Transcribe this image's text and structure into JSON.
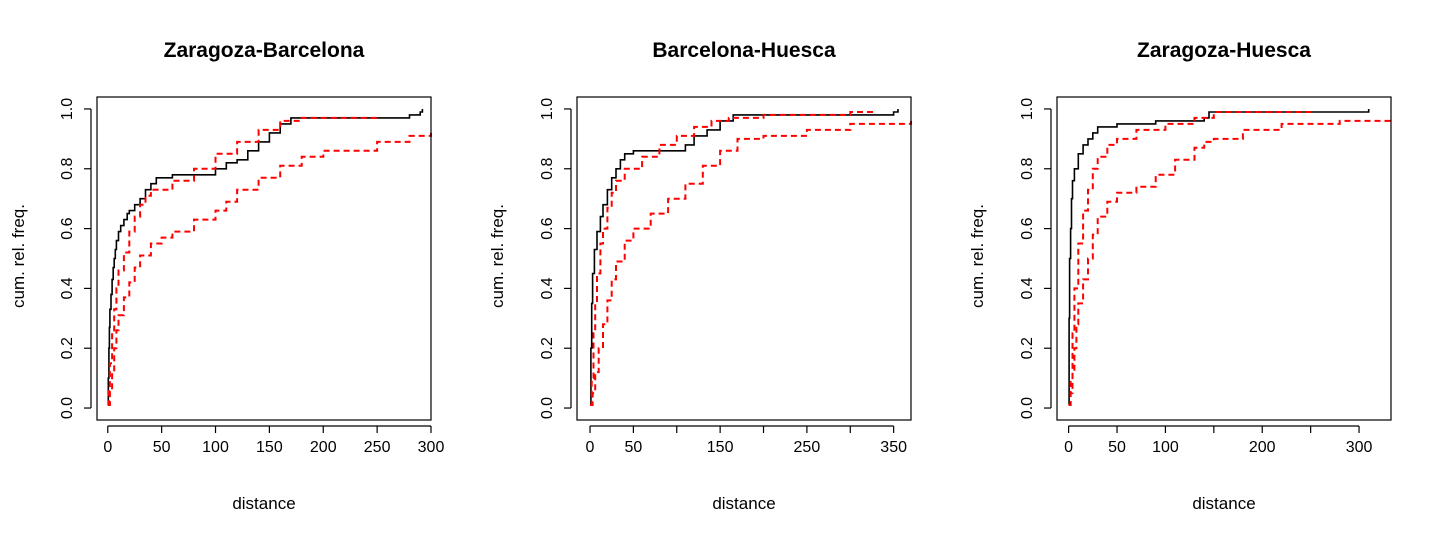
{
  "colors": {
    "observed": "#000000",
    "envelope": "#ff0000",
    "background": "#ffffff"
  },
  "chart_data": [
    {
      "type": "line",
      "title": "Zaragoza-Barcelona",
      "xlabel": "distance",
      "ylabel": "cum. rel. freq.",
      "xlim": [
        -10,
        300
      ],
      "ylim": [
        -0.04,
        1.04
      ],
      "x_ticks": [
        0,
        50,
        100,
        150,
        200,
        250,
        300
      ],
      "y_ticks": [
        0.0,
        0.2,
        0.4,
        0.6,
        0.8,
        1.0
      ],
      "x_tick_labels": [
        "0",
        "50",
        "100",
        "150",
        "200",
        "250",
        "300"
      ],
      "y_tick_labels": [
        "0.0",
        "0.2",
        "0.4",
        "0.6",
        "0.8",
        "1.0"
      ],
      "grid": false,
      "series": [
        {
          "style": "solid",
          "color": "#000000",
          "step": true,
          "points": [
            [
              0,
              0.01
            ],
            [
              0.5,
              0.1
            ],
            [
              1,
              0.2
            ],
            [
              1.5,
              0.27
            ],
            [
              2,
              0.33
            ],
            [
              3,
              0.38
            ],
            [
              4,
              0.43
            ],
            [
              5,
              0.47
            ],
            [
              6,
              0.5
            ],
            [
              7,
              0.53
            ],
            [
              8,
              0.56
            ],
            [
              10,
              0.59
            ],
            [
              12,
              0.61
            ],
            [
              15,
              0.63
            ],
            [
              18,
              0.65
            ],
            [
              20,
              0.66
            ],
            [
              25,
              0.68
            ],
            [
              30,
              0.7
            ],
            [
              35,
              0.73
            ],
            [
              40,
              0.75
            ],
            [
              45,
              0.77
            ],
            [
              60,
              0.78
            ],
            [
              80,
              0.78
            ],
            [
              100,
              0.8
            ],
            [
              110,
              0.82
            ],
            [
              120,
              0.83
            ],
            [
              130,
              0.86
            ],
            [
              140,
              0.89
            ],
            [
              150,
              0.92
            ],
            [
              160,
              0.95
            ],
            [
              170,
              0.97
            ],
            [
              280,
              0.98
            ],
            [
              290,
              0.99
            ],
            [
              292,
              1.0
            ]
          ]
        },
        {
          "style": "dashed",
          "color": "#ff0000",
          "step": true,
          "points": [
            [
              0,
              0.01
            ],
            [
              1,
              0.06
            ],
            [
              2,
              0.15
            ],
            [
              4,
              0.25
            ],
            [
              6,
              0.33
            ],
            [
              8,
              0.4
            ],
            [
              10,
              0.46
            ],
            [
              15,
              0.52
            ],
            [
              20,
              0.59
            ],
            [
              25,
              0.64
            ],
            [
              30,
              0.68
            ],
            [
              35,
              0.71
            ],
            [
              40,
              0.73
            ],
            [
              60,
              0.76
            ],
            [
              80,
              0.8
            ],
            [
              100,
              0.85
            ],
            [
              120,
              0.89
            ],
            [
              140,
              0.93
            ],
            [
              160,
              0.96
            ],
            [
              180,
              0.97
            ],
            [
              200,
              0.97
            ],
            [
              250,
              0.98
            ]
          ]
        },
        {
          "style": "dashed",
          "color": "#ff0000",
          "step": true,
          "points": [
            [
              0,
              0.01
            ],
            [
              2,
              0.06
            ],
            [
              4,
              0.12
            ],
            [
              6,
              0.2
            ],
            [
              8,
              0.26
            ],
            [
              10,
              0.31
            ],
            [
              15,
              0.37
            ],
            [
              20,
              0.42
            ],
            [
              25,
              0.47
            ],
            [
              30,
              0.51
            ],
            [
              40,
              0.55
            ],
            [
              50,
              0.57
            ],
            [
              60,
              0.59
            ],
            [
              80,
              0.63
            ],
            [
              100,
              0.66
            ],
            [
              110,
              0.69
            ],
            [
              120,
              0.73
            ],
            [
              140,
              0.77
            ],
            [
              160,
              0.81
            ],
            [
              180,
              0.84
            ],
            [
              200,
              0.86
            ],
            [
              250,
              0.89
            ],
            [
              280,
              0.91
            ],
            [
              300,
              0.92
            ]
          ]
        }
      ]
    },
    {
      "type": "line",
      "title": "Barcelona-Huesca",
      "xlabel": "distance",
      "ylabel": "cum. rel. freq.",
      "xlim": [
        -15,
        370
      ],
      "ylim": [
        -0.04,
        1.04
      ],
      "x_ticks": [
        0,
        50,
        100,
        150,
        200,
        250,
        300,
        350
      ],
      "y_ticks": [
        0.0,
        0.2,
        0.4,
        0.6,
        0.8,
        1.0
      ],
      "x_tick_labels": [
        "0",
        "50",
        "",
        "150",
        "",
        "250",
        "",
        "350"
      ],
      "y_tick_labels": [
        "0.0",
        "0.2",
        "0.4",
        "0.6",
        "0.8",
        "1.0"
      ],
      "grid": false,
      "series": [
        {
          "style": "solid",
          "color": "#000000",
          "step": true,
          "points": [
            [
              0,
              0.01
            ],
            [
              1,
              0.2
            ],
            [
              2,
              0.35
            ],
            [
              3,
              0.45
            ],
            [
              5,
              0.53
            ],
            [
              8,
              0.59
            ],
            [
              12,
              0.64
            ],
            [
              15,
              0.68
            ],
            [
              20,
              0.73
            ],
            [
              25,
              0.77
            ],
            [
              30,
              0.8
            ],
            [
              35,
              0.83
            ],
            [
              40,
              0.85
            ],
            [
              50,
              0.86
            ],
            [
              100,
              0.86
            ],
            [
              110,
              0.88
            ],
            [
              120,
              0.91
            ],
            [
              135,
              0.93
            ],
            [
              150,
              0.96
            ],
            [
              165,
              0.98
            ],
            [
              350,
              0.99
            ],
            [
              355,
              1.0
            ]
          ]
        },
        {
          "style": "dashed",
          "color": "#ff0000",
          "step": true,
          "points": [
            [
              0,
              0.01
            ],
            [
              2,
              0.1
            ],
            [
              4,
              0.25
            ],
            [
              6,
              0.35
            ],
            [
              8,
              0.45
            ],
            [
              12,
              0.55
            ],
            [
              15,
              0.6
            ],
            [
              20,
              0.67
            ],
            [
              25,
              0.72
            ],
            [
              30,
              0.76
            ],
            [
              40,
              0.8
            ],
            [
              60,
              0.84
            ],
            [
              80,
              0.88
            ],
            [
              100,
              0.91
            ],
            [
              120,
              0.94
            ],
            [
              140,
              0.96
            ],
            [
              160,
              0.97
            ],
            [
              200,
              0.98
            ],
            [
              300,
              0.99
            ],
            [
              330,
              0.99
            ]
          ]
        },
        {
          "style": "dashed",
          "color": "#ff0000",
          "step": true,
          "points": [
            [
              0,
              0.01
            ],
            [
              3,
              0.05
            ],
            [
              6,
              0.12
            ],
            [
              10,
              0.2
            ],
            [
              15,
              0.28
            ],
            [
              20,
              0.36
            ],
            [
              25,
              0.43
            ],
            [
              30,
              0.49
            ],
            [
              40,
              0.56
            ],
            [
              50,
              0.6
            ],
            [
              70,
              0.65
            ],
            [
              90,
              0.7
            ],
            [
              110,
              0.75
            ],
            [
              130,
              0.81
            ],
            [
              150,
              0.86
            ],
            [
              170,
              0.9
            ],
            [
              200,
              0.91
            ],
            [
              250,
              0.93
            ],
            [
              300,
              0.95
            ],
            [
              370,
              0.96
            ]
          ]
        }
      ]
    },
    {
      "type": "line",
      "title": "Zaragoza-Huesca",
      "xlabel": "distance",
      "ylabel": "cum. rel. freq.",
      "xlim": [
        -12,
        333
      ],
      "ylim": [
        -0.04,
        1.04
      ],
      "x_ticks": [
        0,
        50,
        100,
        150,
        200,
        250,
        300
      ],
      "y_ticks": [
        0.0,
        0.2,
        0.4,
        0.6,
        0.8,
        1.0
      ],
      "x_tick_labels": [
        "0",
        "50",
        "100",
        "",
        "200",
        "",
        "300"
      ],
      "y_tick_labels": [
        "0.0",
        "0.2",
        "0.4",
        "0.6",
        "0.8",
        "1.0"
      ],
      "grid": false,
      "series": [
        {
          "style": "solid",
          "color": "#000000",
          "step": true,
          "points": [
            [
              0,
              0.01
            ],
            [
              0.5,
              0.3
            ],
            [
              1,
              0.5
            ],
            [
              2,
              0.6
            ],
            [
              3,
              0.7
            ],
            [
              4,
              0.76
            ],
            [
              6,
              0.8
            ],
            [
              10,
              0.85
            ],
            [
              15,
              0.88
            ],
            [
              20,
              0.9
            ],
            [
              25,
              0.92
            ],
            [
              30,
              0.94
            ],
            [
              50,
              0.95
            ],
            [
              90,
              0.96
            ],
            [
              140,
              0.97
            ],
            [
              145,
              0.99
            ],
            [
              300,
              0.99
            ],
            [
              310,
              1.0
            ]
          ]
        },
        {
          "style": "dashed",
          "color": "#ff0000",
          "step": true,
          "points": [
            [
              0,
              0.01
            ],
            [
              2,
              0.1
            ],
            [
              4,
              0.25
            ],
            [
              6,
              0.4
            ],
            [
              10,
              0.55
            ],
            [
              15,
              0.66
            ],
            [
              20,
              0.73
            ],
            [
              25,
              0.8
            ],
            [
              30,
              0.84
            ],
            [
              40,
              0.88
            ],
            [
              50,
              0.9
            ],
            [
              70,
              0.93
            ],
            [
              100,
              0.95
            ],
            [
              130,
              0.97
            ],
            [
              150,
              0.99
            ],
            [
              250,
              1.0
            ]
          ]
        },
        {
          "style": "dashed",
          "color": "#ff0000",
          "step": true,
          "points": [
            [
              0,
              0.01
            ],
            [
              2,
              0.05
            ],
            [
              4,
              0.12
            ],
            [
              6,
              0.2
            ],
            [
              8,
              0.28
            ],
            [
              10,
              0.35
            ],
            [
              15,
              0.43
            ],
            [
              20,
              0.5
            ],
            [
              25,
              0.58
            ],
            [
              30,
              0.64
            ],
            [
              40,
              0.69
            ],
            [
              50,
              0.72
            ],
            [
              70,
              0.74
            ],
            [
              90,
              0.78
            ],
            [
              110,
              0.83
            ],
            [
              130,
              0.87
            ],
            [
              140,
              0.89
            ],
            [
              150,
              0.9
            ],
            [
              180,
              0.93
            ],
            [
              220,
              0.95
            ],
            [
              280,
              0.96
            ],
            [
              333,
              0.97
            ]
          ]
        }
      ]
    }
  ]
}
